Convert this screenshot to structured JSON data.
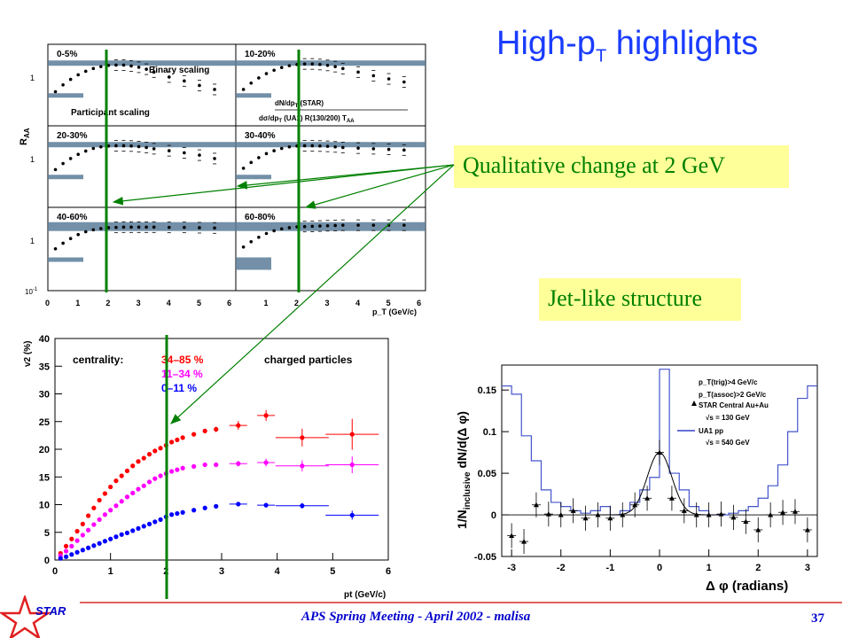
{
  "title": {
    "main": "High-p",
    "sub": "T",
    "rest": " highlights"
  },
  "callouts": {
    "qualitative": "Qualitative change at 2 GeV",
    "jet": "Jet-like structure"
  },
  "footer": {
    "text": "APS Spring Meeting - April 2002 - malisa",
    "page": "37",
    "logo_text": "STAR"
  },
  "colors": {
    "title": "#1a3cff",
    "callout_bg": "#ffff99",
    "callout_text": "#008000",
    "red": "#ff0000",
    "magenta": "#ff00ff",
    "blue": "#0000ff",
    "green_line": "#008000"
  },
  "raa_panel": {
    "ylabel": "R",
    "ylabel_sub": "AA",
    "xlabel": "p_T (GeV/c)",
    "y_ticks": [
      "1",
      "1",
      "1",
      "10"
    ],
    "y_tick_exp": "-1",
    "x_ticks": [
      "0",
      "1",
      "2",
      "3",
      "4",
      "5",
      "6",
      "1",
      "2",
      "3",
      "4",
      "5",
      "6"
    ],
    "binary_label": "Binary scaling",
    "participant_label": "Participant scaling",
    "legend": {
      "line1": "dN/dp",
      "line1_sub": "T",
      "line1_tail": " (STAR)",
      "line2": "dσ/dp",
      "line2_sub": "T",
      "line2_tail": " (UA1) R(130/200) T",
      "line2_sub2": "AA"
    },
    "panels": [
      {
        "label": "0-5%",
        "x": [
          0.25,
          0.5,
          0.75,
          1.0,
          1.25,
          1.5,
          1.75,
          2.0,
          2.25,
          2.5,
          2.75,
          3.0,
          3.25,
          3.5,
          4.0,
          4.5,
          5.0,
          5.5
        ],
        "y": [
          0.35,
          0.45,
          0.55,
          0.65,
          0.74,
          0.82,
          0.88,
          0.92,
          0.93,
          0.93,
          0.9,
          0.86,
          0.8,
          0.72,
          0.6,
          0.52,
          0.44,
          0.38
        ]
      },
      {
        "label": "10-20%",
        "x": [
          0.25,
          0.5,
          0.75,
          1.0,
          1.25,
          1.5,
          1.75,
          2.0,
          2.25,
          2.5,
          2.75,
          3.0,
          3.25,
          3.5,
          4.0,
          4.5,
          5.0,
          5.5
        ],
        "y": [
          0.38,
          0.48,
          0.58,
          0.68,
          0.77,
          0.85,
          0.91,
          0.95,
          0.97,
          0.97,
          0.95,
          0.92,
          0.88,
          0.82,
          0.72,
          0.63,
          0.56,
          0.5
        ]
      },
      {
        "label": "20-30%",
        "x": [
          0.25,
          0.5,
          0.75,
          1.0,
          1.25,
          1.5,
          1.75,
          2.0,
          2.25,
          2.5,
          2.75,
          3.0,
          3.25,
          3.5,
          4.0,
          4.5,
          5.0,
          5.5
        ],
        "y": [
          0.4,
          0.5,
          0.6,
          0.7,
          0.79,
          0.87,
          0.92,
          0.95,
          0.96,
          0.96,
          0.95,
          0.93,
          0.9,
          0.86,
          0.8,
          0.74,
          0.68,
          0.6
        ]
      },
      {
        "label": "30-40%",
        "x": [
          0.25,
          0.5,
          0.75,
          1.0,
          1.25,
          1.5,
          1.75,
          2.0,
          2.25,
          2.5,
          2.75,
          3.0,
          3.25,
          3.5,
          4.0,
          4.5,
          5.0,
          5.5
        ],
        "y": [
          0.42,
          0.52,
          0.62,
          0.72,
          0.8,
          0.87,
          0.92,
          0.95,
          0.96,
          0.96,
          0.95,
          0.94,
          0.92,
          0.9,
          0.88,
          0.86,
          0.84,
          0.82
        ]
      },
      {
        "label": "40-60%",
        "x": [
          0.25,
          0.5,
          0.75,
          1.0,
          1.25,
          1.5,
          1.75,
          2.0,
          2.25,
          2.5,
          2.75,
          3.0,
          3.25,
          3.5,
          4.0,
          4.5,
          5.0,
          5.5
        ],
        "y": [
          0.45,
          0.55,
          0.65,
          0.75,
          0.83,
          0.89,
          0.93,
          0.96,
          0.97,
          0.98,
          0.98,
          0.98,
          0.98,
          0.98,
          0.97,
          0.97,
          0.96,
          0.95
        ]
      },
      {
        "label": "60-80%",
        "x": [
          0.25,
          0.5,
          0.75,
          1.0,
          1.25,
          1.5,
          1.75,
          2.0,
          2.25,
          2.5,
          2.75,
          3.0,
          3.25,
          3.5,
          4.0,
          4.5,
          5.0,
          5.5
        ],
        "y": [
          0.48,
          0.58,
          0.68,
          0.78,
          0.86,
          0.92,
          0.96,
          0.99,
          1.0,
          1.01,
          1.02,
          1.03,
          1.04,
          1.05,
          1.05,
          1.05,
          1.05,
          1.05
        ]
      }
    ]
  },
  "chart_data": [
    {
      "type": "scatter",
      "ylabel": "v2 (%)",
      "xlabel": "pt (GeV/c)",
      "xlim": [
        0,
        6
      ],
      "ylim": [
        0,
        40
      ],
      "x_ticks": [
        "0",
        "1",
        "2",
        "3",
        "4",
        "5",
        "6"
      ],
      "y_ticks": [
        "0",
        "5",
        "10",
        "15",
        "20",
        "25",
        "30",
        "35",
        "40"
      ],
      "legend_title": "centrality:",
      "annotation": "charged particles",
      "series": [
        {
          "name": "34–85 %",
          "color": "#ff0000",
          "x": [
            0.1,
            0.2,
            0.3,
            0.4,
            0.5,
            0.6,
            0.7,
            0.8,
            0.9,
            1.0,
            1.1,
            1.2,
            1.3,
            1.4,
            1.5,
            1.6,
            1.7,
            1.8,
            1.9,
            2.0,
            2.1,
            2.2,
            2.3,
            2.5,
            2.7,
            2.9,
            3.3,
            3.8,
            4.45,
            5.35
          ],
          "y": [
            1.2,
            2.5,
            3.8,
            5.2,
            6.5,
            8.0,
            9.4,
            10.8,
            12.0,
            13.2,
            14.3,
            15.2,
            16.1,
            17.0,
            17.8,
            18.4,
            19.1,
            19.7,
            20.2,
            20.7,
            21.3,
            21.7,
            22.1,
            22.7,
            23.3,
            23.6,
            24.3,
            26.1,
            22.1,
            22.7
          ],
          "err": [
            0.3,
            0.3,
            0.3,
            0.3,
            0.3,
            0.3,
            0.3,
            0.3,
            0.3,
            0.3,
            0.3,
            0.3,
            0.3,
            0.3,
            0.3,
            0.3,
            0.3,
            0.3,
            0.3,
            0.3,
            0.3,
            0.3,
            0.3,
            0.3,
            0.3,
            0.5,
            0.8,
            1.0,
            1.6,
            2.8
          ]
        },
        {
          "name": "11–34 %",
          "color": "#ff00ff",
          "x": [
            0.1,
            0.2,
            0.3,
            0.4,
            0.5,
            0.6,
            0.7,
            0.8,
            0.9,
            1.0,
            1.1,
            1.2,
            1.3,
            1.4,
            1.5,
            1.6,
            1.7,
            1.8,
            1.9,
            2.0,
            2.1,
            2.2,
            2.3,
            2.5,
            2.7,
            2.9,
            3.3,
            3.8,
            4.45,
            5.35
          ],
          "y": [
            0.8,
            1.6,
            2.5,
            3.5,
            4.5,
            5.4,
            6.4,
            7.3,
            8.2,
            9.0,
            9.8,
            10.6,
            11.4,
            12.1,
            12.8,
            13.4,
            14.1,
            14.7,
            15.2,
            15.6,
            16.0,
            16.3,
            16.6,
            16.9,
            17.2,
            17.2,
            17.4,
            17.6,
            17.0,
            17.2
          ],
          "err": [
            0.2,
            0.2,
            0.2,
            0.2,
            0.2,
            0.2,
            0.2,
            0.2,
            0.2,
            0.2,
            0.2,
            0.2,
            0.2,
            0.2,
            0.2,
            0.2,
            0.2,
            0.2,
            0.2,
            0.2,
            0.2,
            0.2,
            0.2,
            0.2,
            0.3,
            0.3,
            0.5,
            0.7,
            1.0,
            1.5
          ]
        },
        {
          "name": "0–11 %",
          "color": "#0000ff",
          "x": [
            0.1,
            0.2,
            0.3,
            0.4,
            0.5,
            0.6,
            0.7,
            0.8,
            0.9,
            1.0,
            1.1,
            1.2,
            1.3,
            1.4,
            1.5,
            1.6,
            1.7,
            1.8,
            1.9,
            2.0,
            2.1,
            2.2,
            2.3,
            2.5,
            2.7,
            2.9,
            3.3,
            3.8,
            4.45,
            5.35
          ],
          "y": [
            0.3,
            0.6,
            1.0,
            1.4,
            1.8,
            2.2,
            2.6,
            3.0,
            3.4,
            3.8,
            4.2,
            4.6,
            4.9,
            5.3,
            5.7,
            6.1,
            6.5,
            6.9,
            7.3,
            7.8,
            8.2,
            8.4,
            8.6,
            9.0,
            9.4,
            9.7,
            10.1,
            9.9,
            9.8,
            8.1
          ],
          "err": [
            0.1,
            0.1,
            0.1,
            0.1,
            0.1,
            0.1,
            0.1,
            0.1,
            0.1,
            0.1,
            0.1,
            0.1,
            0.1,
            0.1,
            0.1,
            0.1,
            0.1,
            0.1,
            0.1,
            0.1,
            0.1,
            0.1,
            0.1,
            0.1,
            0.1,
            0.2,
            0.3,
            0.4,
            0.5,
            0.8
          ]
        }
      ]
    },
    {
      "type": "scatter",
      "ylabel": "1/N",
      "ylabel_sub": "inclusive",
      "ylabel_tail": " dN/d(Δ φ)",
      "xlabel": "Δ φ (radians)",
      "xlim": [
        -3.2,
        3.2
      ],
      "ylim": [
        -0.05,
        0.18
      ],
      "x_ticks": [
        "-3",
        "-2",
        "-1",
        "0",
        "1",
        "2",
        "3"
      ],
      "y_ticks": [
        "-0.05",
        "0",
        "0.05",
        "0.1",
        "0.15"
      ],
      "legend": [
        "p_T(trig)>4 GeV/c",
        "p_T(assoc)>2 GeV/c",
        "STAR Central Au+Au",
        "√s = 130 GeV",
        "UA1 pp",
        "√s = 540 GeV"
      ],
      "star_points": {
        "x": [
          -3.0,
          -2.75,
          -2.5,
          -2.25,
          -2.0,
          -1.75,
          -1.5,
          -1.25,
          -1.0,
          -0.75,
          -0.5,
          -0.25,
          0.0,
          0.25,
          0.5,
          0.75,
          1.0,
          1.25,
          1.5,
          1.75,
          2.0,
          2.25,
          2.5,
          2.75,
          3.0
        ],
        "y": [
          -0.025,
          -0.032,
          0.012,
          0.001,
          0.0,
          0.005,
          -0.004,
          0.0,
          -0.004,
          0.0,
          0.012,
          0.02,
          0.075,
          0.02,
          0.005,
          0.0,
          0.0,
          0.001,
          -0.003,
          -0.008,
          -0.018,
          0.0,
          0.003,
          0.004,
          -0.018
        ],
        "err": [
          0.015,
          0.015,
          0.015,
          0.015,
          0.015,
          0.015,
          0.015,
          0.015,
          0.015,
          0.015,
          0.015,
          0.015,
          0.015,
          0.015,
          0.015,
          0.015,
          0.015,
          0.015,
          0.015,
          0.015,
          0.015,
          0.015,
          0.015,
          0.015,
          0.015
        ]
      },
      "gauss_fit": {
        "amplitude": 0.075,
        "sigma": 0.25,
        "center": 0
      },
      "ua1_hist": {
        "edges": [
          -3.2,
          -3.0,
          -2.8,
          -2.6,
          -2.4,
          -2.2,
          -2.0,
          -1.8,
          -1.6,
          -1.4,
          -1.2,
          -1.0,
          -0.8,
          -0.6,
          -0.4,
          -0.2,
          0.0,
          0.2,
          0.4,
          0.6,
          0.8,
          1.0,
          1.2,
          1.4,
          1.6,
          1.8,
          2.0,
          2.2,
          2.4,
          2.6,
          2.8,
          3.0,
          3.2
        ],
        "values": [
          0.155,
          0.145,
          0.095,
          0.065,
          0.03,
          0.015,
          0.01,
          0.005,
          0.002,
          0.005,
          0.01,
          0.0,
          0.005,
          0.015,
          0.03,
          0.045,
          0.175,
          0.05,
          0.03,
          0.01,
          0.005,
          0.0,
          0.0,
          0.002,
          0.005,
          0.01,
          0.02,
          0.035,
          0.06,
          0.1,
          0.14,
          0.155
        ]
      }
    }
  ]
}
